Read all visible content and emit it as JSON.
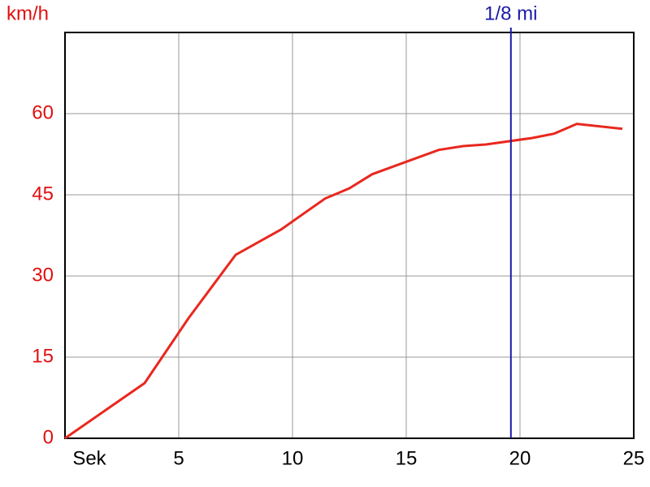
{
  "chart_data": {
    "type": "line",
    "y_label": "km/h",
    "x_label": "Sek",
    "x": [
      0,
      3.5,
      5.43,
      7.5,
      9.5,
      11.43,
      12.5,
      13.5,
      16.43,
      17.5,
      18.5,
      20.54,
      21.5,
      22.5,
      24.5
    ],
    "values": [
      0,
      10.2,
      22.2,
      33.9,
      38.6,
      44.3,
      46.2,
      48.8,
      53.3,
      54,
      54.3,
      55.5,
      56.3,
      58.1,
      57.2
    ],
    "color": "#e8281e",
    "xlim": [
      0,
      25
    ],
    "xticks": [
      5,
      10,
      15,
      20,
      25
    ],
    "ylim": [
      0,
      75
    ],
    "yticks": [
      0,
      15,
      30,
      45,
      60
    ],
    "grid": true,
    "annotation": {
      "x": 19.6,
      "label": "1/8 mi",
      "color": "#1a1aa8"
    }
  }
}
